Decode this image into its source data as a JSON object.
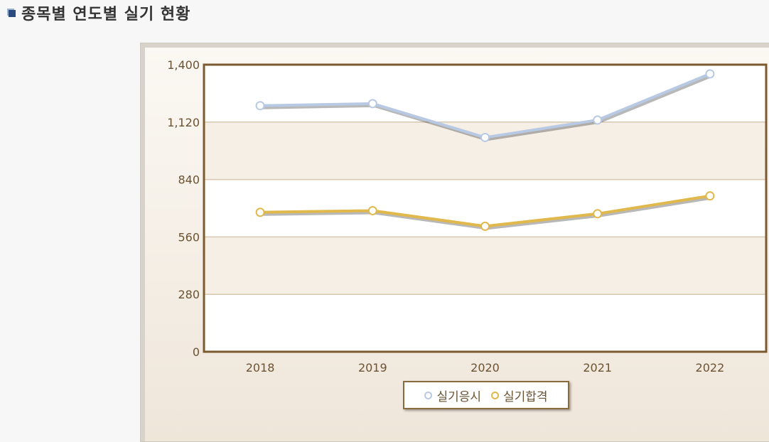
{
  "page": {
    "title": "종목별 연도별 실기 현황"
  },
  "chart_data": {
    "type": "line",
    "title": "",
    "xlabel": "",
    "ylabel": "",
    "categories": [
      "2018",
      "2019",
      "2020",
      "2021",
      "2022"
    ],
    "ylim": [
      0,
      1400
    ],
    "yticks": [
      "0",
      "280",
      "560",
      "840",
      "1,120",
      "1,400"
    ],
    "ytick_values": [
      0,
      280,
      560,
      840,
      1120,
      1400
    ],
    "series": [
      {
        "name": "실기응시",
        "values": [
          1200,
          1210,
          1045,
          1130,
          1355
        ],
        "color": "#b8c9e3"
      },
      {
        "name": "실기합격",
        "values": [
          680,
          688,
          612,
          673,
          760
        ],
        "color": "#e0b84b"
      }
    ],
    "legend_position": "bottom-center",
    "grid": true,
    "colors": {
      "axis": "#7a5a2e",
      "band_alt": "#f5efe6",
      "grid": "#d8c8b2",
      "tick_text": "#6a5332"
    }
  }
}
